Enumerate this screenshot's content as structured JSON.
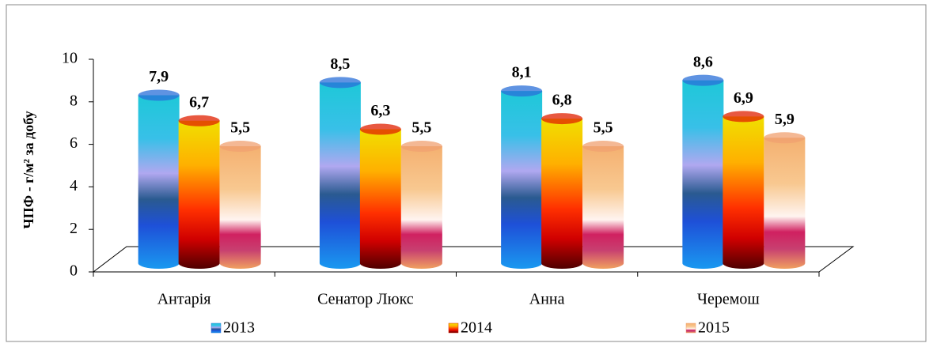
{
  "chart_data": {
    "type": "bar",
    "y_label": "ЧПФ - г/м² за добу",
    "categories": [
      "Антарія",
      "Сенатор Люкс",
      "Анна",
      "Черемош"
    ],
    "series": [
      {
        "name": "2013",
        "color": "#2a6fd8",
        "values": [
          7.9,
          8.5,
          8.1,
          8.6
        ],
        "value_labels": [
          "7,9",
          "8,5",
          "8,1",
          "8,6"
        ]
      },
      {
        "name": "2014",
        "color": "#e02000",
        "values": [
          6.7,
          6.3,
          6.8,
          6.9
        ],
        "value_labels": [
          "6,7",
          "6,3",
          "6,8",
          "6,9"
        ]
      },
      {
        "name": "2015",
        "color": "#f0a070",
        "values": [
          5.5,
          5.5,
          5.5,
          5.9
        ],
        "value_labels": [
          "5,5",
          "5,5",
          "5,5",
          "5,9"
        ]
      }
    ],
    "ylim": [
      0,
      10
    ],
    "yticks": [
      0,
      2,
      4,
      6,
      8,
      10
    ]
  }
}
